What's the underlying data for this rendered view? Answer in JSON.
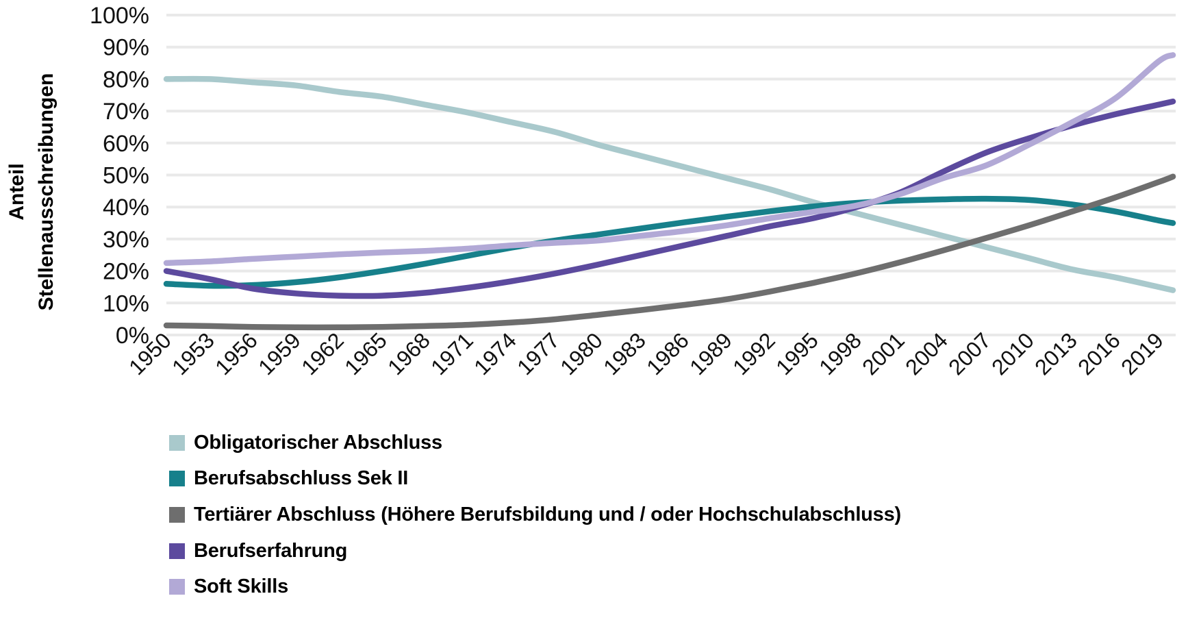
{
  "page": {
    "background": "#ffffff",
    "text_color": "#111111"
  },
  "chart_data": {
    "type": "line",
    "title": "",
    "ylabel": "Anteil Stellenausschreibungen",
    "ylabel_lines": [
      "Anteil",
      "Stellenausschreibungen"
    ],
    "xlabel": "",
    "ylim": [
      0,
      100
    ],
    "xlim": [
      1950,
      2020
    ],
    "grid": true,
    "grid_color": "#e9e9e9",
    "axis_text_color": "#111111",
    "legend_position": "bottom-left",
    "yticks": [
      {
        "v": 0,
        "label": "0%"
      },
      {
        "v": 10,
        "label": "10%"
      },
      {
        "v": 20,
        "label": "20%"
      },
      {
        "v": 30,
        "label": "30%"
      },
      {
        "v": 40,
        "label": "40%"
      },
      {
        "v": 50,
        "label": "50%"
      },
      {
        "v": 60,
        "label": "60%"
      },
      {
        "v": 70,
        "label": "70%"
      },
      {
        "v": 80,
        "label": "80%"
      },
      {
        "v": 90,
        "label": "90%"
      },
      {
        "v": 100,
        "label": "100%"
      }
    ],
    "x_ticks": [
      {
        "v": 1950,
        "label": "1950"
      },
      {
        "v": 1953,
        "label": "1953"
      },
      {
        "v": 1956,
        "label": "1956"
      },
      {
        "v": 1959,
        "label": "1959"
      },
      {
        "v": 1962,
        "label": "1962"
      },
      {
        "v": 1965,
        "label": "1965"
      },
      {
        "v": 1968,
        "label": "1968"
      },
      {
        "v": 1971,
        "label": "1971"
      },
      {
        "v": 1974,
        "label": "1974"
      },
      {
        "v": 1977,
        "label": "1977"
      },
      {
        "v": 1980,
        "label": "1980"
      },
      {
        "v": 1983,
        "label": "1983"
      },
      {
        "v": 1986,
        "label": "1986"
      },
      {
        "v": 1989,
        "label": "1989"
      },
      {
        "v": 1992,
        "label": "1992"
      },
      {
        "v": 1995,
        "label": "1995"
      },
      {
        "v": 1998,
        "label": "1998"
      },
      {
        "v": 2001,
        "label": "2001"
      },
      {
        "v": 2004,
        "label": "2004"
      },
      {
        "v": 2007,
        "label": "2007"
      },
      {
        "v": 2010,
        "label": "2010"
      },
      {
        "v": 2013,
        "label": "2013"
      },
      {
        "v": 2016,
        "label": "2016"
      },
      {
        "v": 2019,
        "label": "2019"
      }
    ],
    "x": [
      1950,
      1953,
      1956,
      1959,
      1962,
      1965,
      1968,
      1971,
      1974,
      1977,
      1980,
      1983,
      1986,
      1989,
      1992,
      1995,
      1998,
      2001,
      2004,
      2007,
      2010,
      2013,
      2016,
      2019,
      2020
    ],
    "series": [
      {
        "name": "Obligatorischer Abschluss",
        "color": "#a9c9cc",
        "values": [
          80,
          80,
          79,
          78,
          76,
          74.5,
          72,
          69.5,
          66.5,
          63.5,
          59.5,
          56,
          52.5,
          49,
          45.5,
          41.5,
          38,
          34.5,
          31,
          27.5,
          24,
          20.5,
          18,
          15,
          14
        ]
      },
      {
        "name": "Berufsabschluss Sek II",
        "color": "#17808b",
        "values": [
          16,
          15.4,
          15.6,
          16.5,
          18,
          20,
          22.3,
          24.8,
          27.3,
          29.5,
          31.4,
          33.3,
          35.2,
          37,
          38.7,
          40.2,
          41.3,
          42,
          42.4,
          42.6,
          42.2,
          40.8,
          38.6,
          35.8,
          35
        ]
      },
      {
        "name": "Tertiärer Abschluss (Höhere Berufsbildung und / oder Hochschulabschluss)",
        "color": "#6e6e6e",
        "values": [
          3,
          2.8,
          2.5,
          2.4,
          2.4,
          2.5,
          2.8,
          3.2,
          3.9,
          4.9,
          6.3,
          7.8,
          9.4,
          11.2,
          13.6,
          16.3,
          19.3,
          22.7,
          26.4,
          30.3,
          34.3,
          38.6,
          43,
          47.8,
          49.5
        ]
      },
      {
        "name": "Berufserfahrung",
        "color": "#5c4a9e",
        "values": [
          20,
          17.5,
          14.5,
          13,
          12.3,
          12.3,
          13.2,
          14.8,
          16.8,
          19.2,
          22,
          25,
          28,
          31,
          34,
          36.5,
          40,
          44.5,
          51,
          57,
          61.5,
          65.5,
          69,
          72,
          73
        ]
      },
      {
        "name": "Soft Skills",
        "color": "#b2a9d6",
        "values": [
          22.5,
          23,
          23.8,
          24.5,
          25.2,
          25.8,
          26.3,
          27,
          28,
          28.8,
          29.5,
          31,
          32.5,
          34.3,
          36.5,
          38.5,
          40.5,
          44,
          49,
          53,
          59.5,
          66.5,
          74,
          85.5,
          87.5
        ]
      }
    ],
    "line_width": 8.5
  }
}
